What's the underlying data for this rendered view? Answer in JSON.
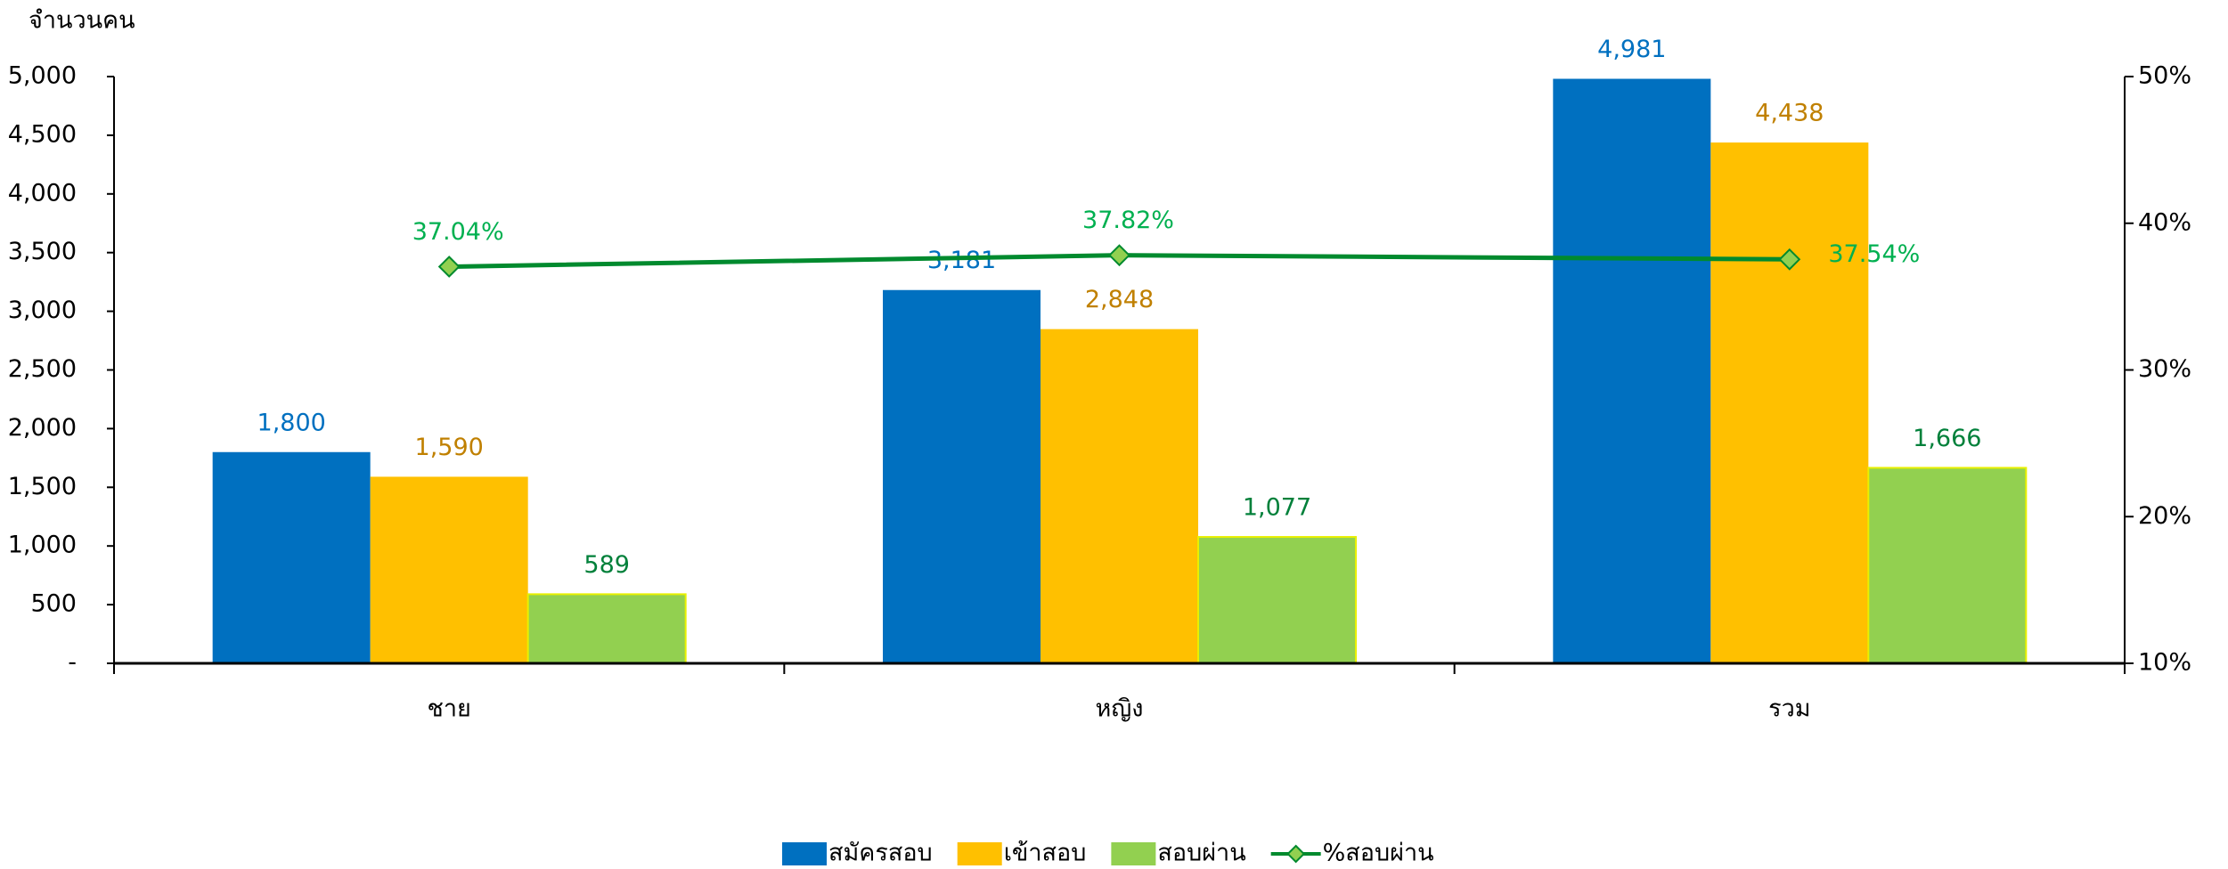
{
  "chart_data": {
    "type": "bar",
    "y_label": "จำนวนคน",
    "categories": [
      "ชาย",
      "หญิง",
      "รวม"
    ],
    "series": [
      {
        "name": "สมัครสอบ",
        "color": "#0070c0",
        "label_color": "#0070c0",
        "values": [
          1800,
          3181,
          4981
        ],
        "value_labels": [
          "1,800",
          "3,181",
          "4,981"
        ]
      },
      {
        "name": "เข้าสอบ",
        "color": "#ffc000",
        "label_color": "#c08000",
        "values": [
          1590,
          2848,
          4438
        ],
        "value_labels": [
          "1,590",
          "2,848",
          "4,438"
        ]
      },
      {
        "name": "สอบผ่าน",
        "color": "#92d050",
        "label_color": "#00803a",
        "values": [
          589,
          1077,
          1666
        ],
        "value_labels": [
          "589",
          "1,077",
          "1,666"
        ]
      },
      {
        "name": "%สอบผ่าน",
        "type": "line",
        "axis": "y2",
        "color": "#008a2e",
        "marker_color": "#92d050",
        "label_color": "#00b050",
        "values": [
          37.04,
          37.82,
          37.54
        ],
        "value_labels": [
          "37.04%",
          "37.82%",
          "37.54%"
        ]
      }
    ],
    "ylim": [
      0,
      5000
    ],
    "yticks": [
      {
        "value": 0,
        "label": "-"
      },
      500,
      {
        "value": 1000,
        "label": "1,000"
      },
      {
        "value": 1500,
        "label": "1,500"
      },
      {
        "value": 2000,
        "label": "2,000"
      },
      {
        "value": 2500,
        "label": "2,500"
      },
      {
        "value": 3000,
        "label": "3,000"
      },
      {
        "value": 3500,
        "label": "3,500"
      },
      {
        "value": 4000,
        "label": "4,000"
      },
      {
        "value": 4500,
        "label": "4,500"
      },
      {
        "value": 5000,
        "label": "5,000"
      }
    ],
    "y2lim": [
      10,
      50
    ],
    "y2ticks": [
      {
        "value": 10,
        "label": "10%"
      },
      {
        "value": 20,
        "label": "20%"
      },
      {
        "value": 30,
        "label": "30%"
      },
      {
        "value": 40,
        "label": "40%"
      },
      {
        "value": 50,
        "label": "50%"
      }
    ],
    "legend": "bottom"
  }
}
